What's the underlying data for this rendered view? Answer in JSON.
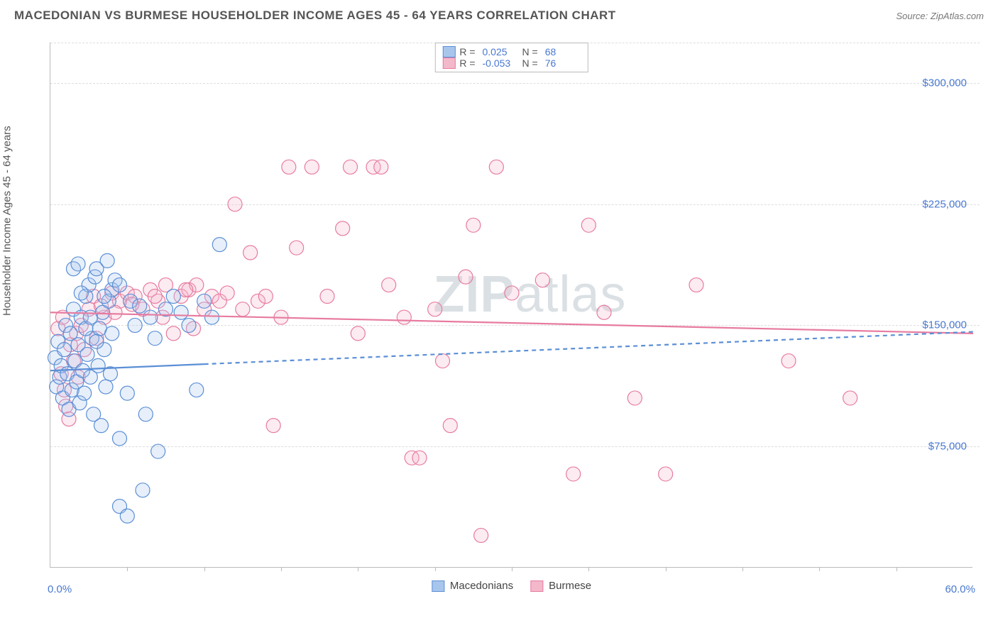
{
  "header": {
    "title": "MACEDONIAN VS BURMESE HOUSEHOLDER INCOME AGES 45 - 64 YEARS CORRELATION CHART",
    "source_prefix": "Source: ",
    "source_link": "ZipAtlas.com"
  },
  "chart": {
    "type": "scatter",
    "ylabel": "Householder Income Ages 45 - 64 years",
    "xlim": [
      0,
      60
    ],
    "ylim": [
      0,
      325000
    ],
    "xlim_labels": {
      "min": "0.0%",
      "max": "60.0%"
    },
    "xtick_positions": [
      5,
      10,
      15,
      20,
      25,
      30,
      35,
      40,
      45,
      50,
      55
    ],
    "ygrid": [
      {
        "value": 75000,
        "label": "$75,000"
      },
      {
        "value": 150000,
        "label": "$150,000"
      },
      {
        "value": 225000,
        "label": "$225,000"
      },
      {
        "value": 300000,
        "label": "$300,000"
      }
    ],
    "background_color": "#ffffff",
    "grid_color": "#dddddd",
    "axis_color": "#bbbbbb",
    "tick_label_color": "#4878d0",
    "label_color": "#555555",
    "title_fontsize": 17,
    "label_fontsize": 15,
    "tick_fontsize": 15,
    "marker_radius": 10,
    "marker_stroke_width": 1.2,
    "marker_fill_opacity": 0.28,
    "trend_line_width": 2.2,
    "trend_dash_pattern": "6,5",
    "watermark_text": "ZIPatlas",
    "watermark_color": "#97a8b0",
    "watermark_opacity": 0.35,
    "series": {
      "macedonians": {
        "label": "Macedonians",
        "stroke": "#5b8fd6",
        "fill": "#a8c6ec",
        "r_value": "0.025",
        "n_value": "68",
        "trend": {
          "x1": 0,
          "y1": 122000,
          "x2": 60,
          "y2": 146000,
          "solid_until_x": 10
        },
        "points": [
          [
            0.3,
            130000
          ],
          [
            0.4,
            112000
          ],
          [
            0.5,
            140000
          ],
          [
            0.6,
            118000
          ],
          [
            0.7,
            125000
          ],
          [
            0.8,
            105000
          ],
          [
            0.9,
            135000
          ],
          [
            1.0,
            150000
          ],
          [
            1.1,
            120000
          ],
          [
            1.2,
            98000
          ],
          [
            1.3,
            145000
          ],
          [
            1.4,
            110000
          ],
          [
            1.5,
            160000
          ],
          [
            1.6,
            128000
          ],
          [
            1.7,
            115000
          ],
          [
            1.8,
            138000
          ],
          [
            1.9,
            102000
          ],
          [
            2.0,
            155000
          ],
          [
            2.1,
            122000
          ],
          [
            2.2,
            108000
          ],
          [
            2.3,
            168000
          ],
          [
            2.4,
            132000
          ],
          [
            2.5,
            175000
          ],
          [
            2.6,
            118000
          ],
          [
            2.7,
            142000
          ],
          [
            2.8,
            95000
          ],
          [
            2.9,
            180000
          ],
          [
            3.0,
            185000
          ],
          [
            3.1,
            125000
          ],
          [
            3.2,
            148000
          ],
          [
            3.3,
            88000
          ],
          [
            3.4,
            158000
          ],
          [
            3.5,
            135000
          ],
          [
            3.6,
            112000
          ],
          [
            3.7,
            190000
          ],
          [
            3.8,
            165000
          ],
          [
            3.9,
            120000
          ],
          [
            4.0,
            172000
          ],
          [
            4.2,
            178000
          ],
          [
            4.5,
            38000
          ],
          [
            4.5,
            80000
          ],
          [
            5.0,
            32000
          ],
          [
            5.0,
            108000
          ],
          [
            5.2,
            165000
          ],
          [
            5.5,
            150000
          ],
          [
            5.8,
            162000
          ],
          [
            6.0,
            48000
          ],
          [
            6.2,
            95000
          ],
          [
            6.5,
            155000
          ],
          [
            6.8,
            142000
          ],
          [
            7.0,
            72000
          ],
          [
            7.5,
            160000
          ],
          [
            8.0,
            168000
          ],
          [
            8.5,
            158000
          ],
          [
            9.0,
            150000
          ],
          [
            9.5,
            110000
          ],
          [
            10.0,
            165000
          ],
          [
            10.5,
            155000
          ],
          [
            11.0,
            200000
          ],
          [
            1.5,
            185000
          ],
          [
            1.8,
            188000
          ],
          [
            2.0,
            170000
          ],
          [
            2.3,
            148000
          ],
          [
            2.6,
            155000
          ],
          [
            3.0,
            140000
          ],
          [
            3.5,
            168000
          ],
          [
            4.0,
            145000
          ],
          [
            4.5,
            175000
          ]
        ]
      },
      "burmese": {
        "label": "Burmese",
        "stroke": "#e77ba0",
        "fill": "#f4b8cb",
        "r_value": "-0.053",
        "n_value": "76",
        "trend": {
          "x1": 0,
          "y1": 158000,
          "x2": 60,
          "y2": 145000,
          "solid_until_x": 60
        },
        "points": [
          [
            0.5,
            148000
          ],
          [
            0.7,
            120000
          ],
          [
            0.8,
            155000
          ],
          [
            0.9,
            110000
          ],
          [
            1.0,
            100000
          ],
          [
            1.2,
            92000
          ],
          [
            1.3,
            138000
          ],
          [
            1.5,
            128000
          ],
          [
            1.7,
            145000
          ],
          [
            1.8,
            118000
          ],
          [
            2.0,
            150000
          ],
          [
            2.2,
            135000
          ],
          [
            2.5,
            160000
          ],
          [
            3.0,
            142000
          ],
          [
            3.5,
            155000
          ],
          [
            4.0,
            170000
          ],
          [
            4.5,
            165000
          ],
          [
            5.0,
            170000
          ],
          [
            5.5,
            168000
          ],
          [
            6.0,
            160000
          ],
          [
            6.5,
            172000
          ],
          [
            7.0,
            165000
          ],
          [
            7.5,
            175000
          ],
          [
            8.0,
            145000
          ],
          [
            8.5,
            168000
          ],
          [
            9.0,
            172000
          ],
          [
            9.5,
            175000
          ],
          [
            10.0,
            160000
          ],
          [
            10.5,
            168000
          ],
          [
            11.0,
            165000
          ],
          [
            11.5,
            170000
          ],
          [
            12.0,
            225000
          ],
          [
            12.5,
            160000
          ],
          [
            13.0,
            195000
          ],
          [
            13.5,
            165000
          ],
          [
            14.0,
            168000
          ],
          [
            15.0,
            155000
          ],
          [
            15.5,
            248000
          ],
          [
            16.0,
            198000
          ],
          [
            17.0,
            248000
          ],
          [
            18.0,
            168000
          ],
          [
            19.0,
            210000
          ],
          [
            19.5,
            248000
          ],
          [
            20.0,
            145000
          ],
          [
            21.0,
            248000
          ],
          [
            21.5,
            248000
          ],
          [
            22.0,
            175000
          ],
          [
            23.0,
            155000
          ],
          [
            23.5,
            68000
          ],
          [
            24.0,
            68000
          ],
          [
            25.0,
            160000
          ],
          [
            25.5,
            128000
          ],
          [
            26.0,
            88000
          ],
          [
            27.0,
            180000
          ],
          [
            27.5,
            212000
          ],
          [
            28.0,
            20000
          ],
          [
            29.0,
            248000
          ],
          [
            30.0,
            170000
          ],
          [
            32.0,
            178000
          ],
          [
            34.0,
            58000
          ],
          [
            35.0,
            212000
          ],
          [
            36.0,
            158000
          ],
          [
            38.0,
            105000
          ],
          [
            40.0,
            58000
          ],
          [
            42.0,
            175000
          ],
          [
            48.0,
            128000
          ],
          [
            52.0,
            105000
          ],
          [
            14.5,
            88000
          ],
          [
            2.8,
            168000
          ],
          [
            3.3,
            162000
          ],
          [
            4.2,
            158000
          ],
          [
            5.3,
            163000
          ],
          [
            6.8,
            168000
          ],
          [
            7.3,
            155000
          ],
          [
            8.8,
            172000
          ],
          [
            9.3,
            148000
          ]
        ]
      }
    },
    "legend_top": {
      "r_label": "R =",
      "n_label": "N ="
    },
    "legend_bottom": [
      {
        "key": "macedonians"
      },
      {
        "key": "burmese"
      }
    ]
  }
}
